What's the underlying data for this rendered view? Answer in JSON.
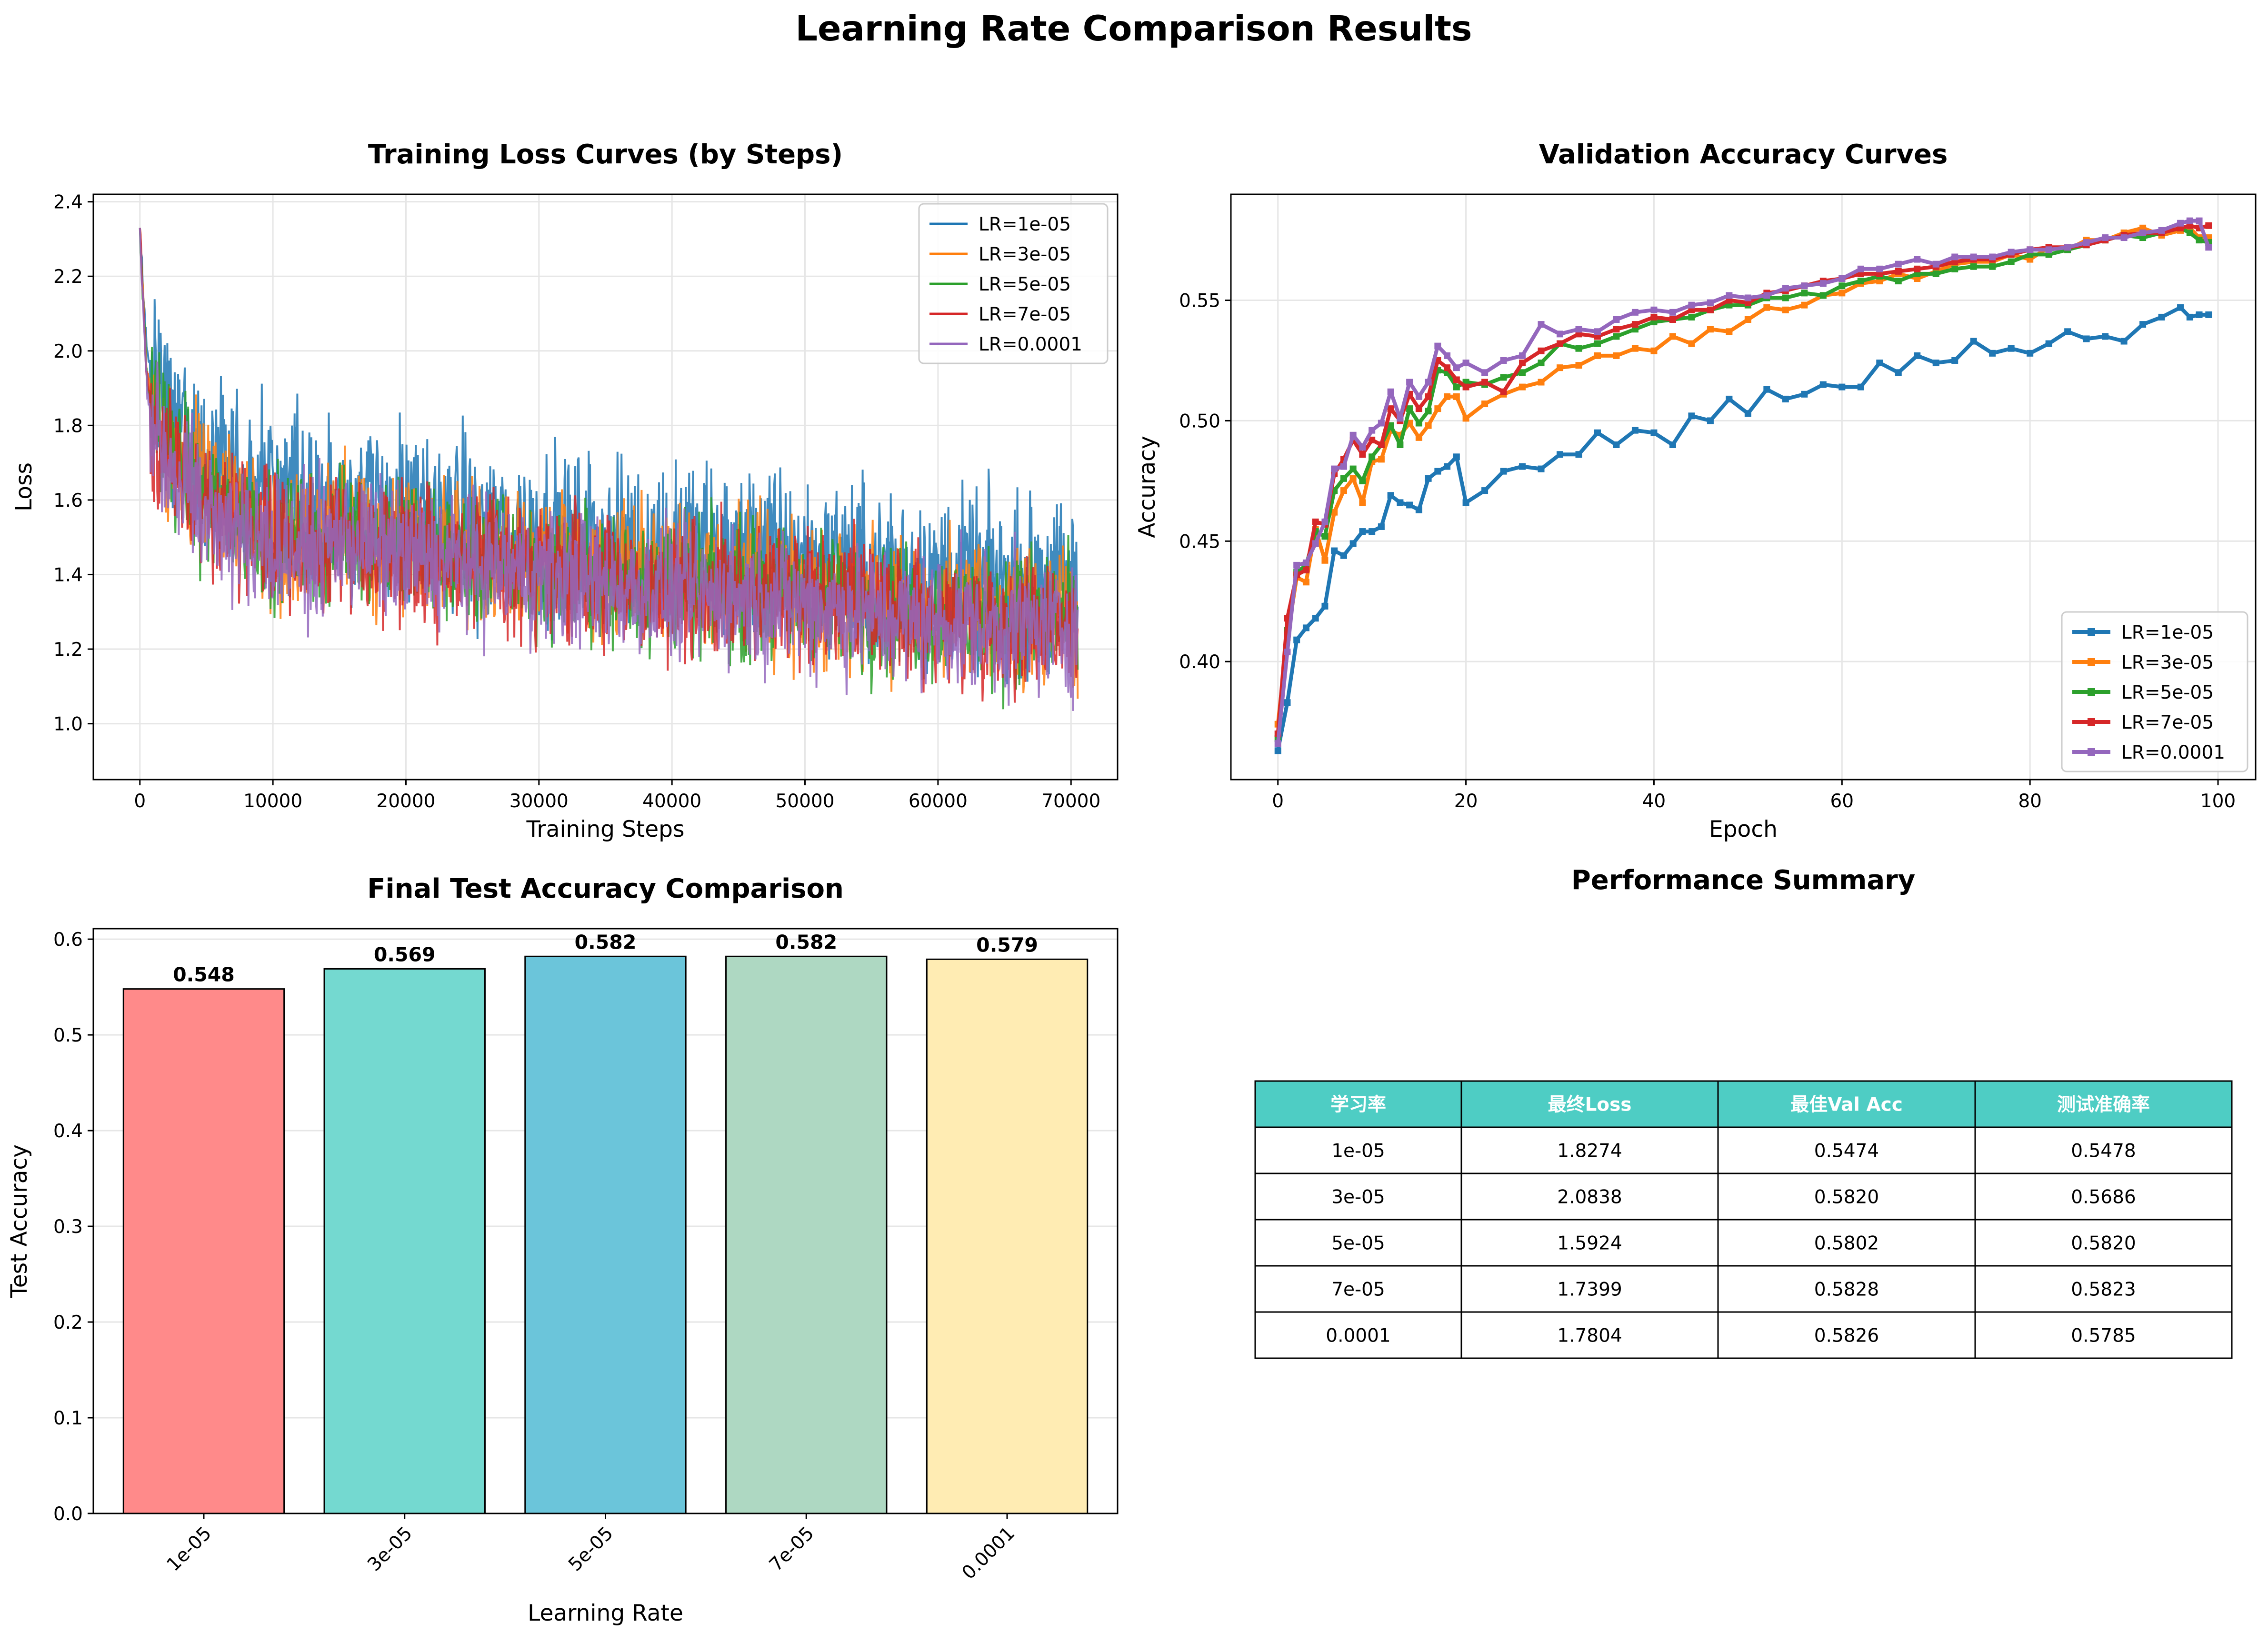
{
  "figure": {
    "title": "Learning Rate Comparison Results"
  },
  "chart_data": [
    {
      "type": "line",
      "title": "Training Loss Curves (by Steps)",
      "xlabel": "Training Steps",
      "ylabel": "Loss",
      "xlim": [
        -3500,
        73500
      ],
      "ylim": [
        0.85,
        2.42
      ],
      "xticks": [
        0,
        10000,
        20000,
        30000,
        40000,
        50000,
        60000,
        70000
      ],
      "yticks": [
        1.0,
        1.2,
        1.4,
        1.6,
        1.8,
        2.0,
        2.2,
        2.4
      ],
      "yticks_labels": [
        "1.0",
        "1.2",
        "1.4",
        "1.6",
        "1.8",
        "2.0",
        "2.2",
        "2.4"
      ],
      "grid": true,
      "legend": "top-right",
      "series": [
        {
          "name": "LR=1e-05",
          "color": "#1f77b4",
          "x": [
            0,
            500,
            1000,
            2000,
            3000,
            5000,
            7500,
            10000,
            12500,
            15000,
            17500,
            20000,
            25000,
            30000,
            35000,
            40000,
            45000,
            50000,
            55000,
            60000,
            65000,
            70500
          ],
          "y": [
            2.33,
            2.0,
            1.92,
            1.86,
            1.8,
            1.7,
            1.66,
            1.63,
            1.6,
            1.6,
            1.58,
            1.56,
            1.53,
            1.5,
            1.49,
            1.47,
            1.46,
            1.44,
            1.41,
            1.39,
            1.37,
            1.36
          ]
        },
        {
          "name": "LR=3e-05",
          "color": "#ff7f0e",
          "x": [
            0,
            500,
            1000,
            2000,
            3000,
            5000,
            7500,
            10000,
            12500,
            15000,
            17500,
            20000,
            25000,
            30000,
            35000,
            40000,
            45000,
            50000,
            55000,
            60000,
            65000,
            70500
          ],
          "y": [
            2.33,
            1.95,
            1.85,
            1.78,
            1.72,
            1.63,
            1.57,
            1.52,
            1.5,
            1.52,
            1.5,
            1.48,
            1.46,
            1.42,
            1.41,
            1.39,
            1.38,
            1.36,
            1.33,
            1.31,
            1.3,
            1.29
          ]
        },
        {
          "name": "LR=5e-05",
          "color": "#2ca02c",
          "x": [
            0,
            500,
            1000,
            2000,
            3000,
            5000,
            7500,
            10000,
            12500,
            15000,
            17500,
            20000,
            25000,
            30000,
            35000,
            40000,
            45000,
            50000,
            55000,
            60000,
            65000,
            70500
          ],
          "y": [
            2.33,
            1.93,
            1.82,
            1.75,
            1.68,
            1.6,
            1.55,
            1.5,
            1.48,
            1.51,
            1.49,
            1.47,
            1.44,
            1.41,
            1.39,
            1.37,
            1.36,
            1.34,
            1.31,
            1.29,
            1.28,
            1.27
          ]
        },
        {
          "name": "LR=7e-05",
          "color": "#d62728",
          "x": [
            0,
            500,
            1000,
            2000,
            3000,
            5000,
            7500,
            10000,
            12500,
            15000,
            17500,
            20000,
            25000,
            30000,
            35000,
            40000,
            45000,
            50000,
            55000,
            60000,
            65000,
            70500
          ],
          "y": [
            2.33,
            1.92,
            1.8,
            1.73,
            1.67,
            1.59,
            1.54,
            1.49,
            1.47,
            1.51,
            1.49,
            1.46,
            1.44,
            1.41,
            1.38,
            1.36,
            1.35,
            1.33,
            1.3,
            1.28,
            1.27,
            1.27
          ]
        },
        {
          "name": "LR=0.0001",
          "color": "#9467bd",
          "x": [
            0,
            500,
            1000,
            2000,
            3000,
            5000,
            7500,
            10000,
            12500,
            15000,
            17500,
            20000,
            25000,
            30000,
            35000,
            40000,
            45000,
            50000,
            55000,
            60000,
            65000,
            70500
          ],
          "y": [
            2.33,
            1.9,
            1.78,
            1.71,
            1.65,
            1.57,
            1.52,
            1.48,
            1.46,
            1.5,
            1.48,
            1.45,
            1.43,
            1.4,
            1.37,
            1.35,
            1.34,
            1.32,
            1.29,
            1.27,
            1.26,
            1.26
          ]
        }
      ]
    },
    {
      "type": "line",
      "title": "Validation Accuracy Curves",
      "xlabel": "Epoch",
      "ylabel": "Accuracy",
      "xlim": [
        -5,
        104
      ],
      "ylim": [
        0.351,
        0.594
      ],
      "xticks": [
        0,
        20,
        40,
        60,
        80,
        100
      ],
      "yticks": [
        0.4,
        0.45,
        0.5,
        0.55
      ],
      "yticks_labels": [
        "0.40",
        "0.45",
        "0.50",
        "0.55"
      ],
      "grid": true,
      "legend": "bottom-right",
      "series": [
        {
          "name": "LR=1e-05",
          "color": "#1f77b4",
          "x": [
            0,
            1,
            2,
            3,
            4,
            5,
            6,
            7,
            8,
            9,
            10,
            11,
            12,
            13,
            14,
            15,
            16,
            17,
            18,
            19,
            20,
            22,
            24,
            26,
            28,
            30,
            32,
            34,
            36,
            38,
            40,
            42,
            44,
            46,
            48,
            50,
            52,
            54,
            56,
            58,
            60,
            62,
            64,
            66,
            68,
            70,
            72,
            74,
            76,
            78,
            80,
            82,
            84,
            86,
            88,
            90,
            92,
            94,
            96,
            97,
            98,
            99
          ],
          "y": [
            0.363,
            0.383,
            0.409,
            0.414,
            0.418,
            0.423,
            0.446,
            0.444,
            0.449,
            0.454,
            0.454,
            0.456,
            0.469,
            0.466,
            0.465,
            0.463,
            0.476,
            0.479,
            0.481,
            0.485,
            0.466,
            0.471,
            0.479,
            0.481,
            0.48,
            0.486,
            0.486,
            0.495,
            0.49,
            0.496,
            0.495,
            0.49,
            0.502,
            0.5,
            0.509,
            0.503,
            0.513,
            0.509,
            0.511,
            0.515,
            0.514,
            0.514,
            0.524,
            0.52,
            0.527,
            0.524,
            0.525,
            0.533,
            0.528,
            0.53,
            0.528,
            0.532,
            0.537,
            0.534,
            0.535,
            0.533,
            0.54,
            0.543,
            0.547,
            0.543,
            0.544,
            0.544
          ]
        },
        {
          "name": "LR=3e-05",
          "color": "#ff7f0e",
          "x": [
            0,
            1,
            2,
            3,
            4,
            5,
            6,
            7,
            8,
            9,
            10,
            11,
            12,
            13,
            14,
            15,
            16,
            17,
            18,
            19,
            20,
            22,
            24,
            26,
            28,
            30,
            32,
            34,
            36,
            38,
            40,
            42,
            44,
            46,
            48,
            50,
            52,
            54,
            56,
            58,
            60,
            62,
            64,
            66,
            68,
            70,
            72,
            74,
            76,
            78,
            80,
            82,
            84,
            86,
            88,
            90,
            92,
            94,
            96,
            97,
            98,
            99
          ],
          "y": [
            0.374,
            0.41,
            0.435,
            0.433,
            0.455,
            0.442,
            0.462,
            0.471,
            0.476,
            0.466,
            0.483,
            0.484,
            0.496,
            0.494,
            0.499,
            0.493,
            0.498,
            0.505,
            0.51,
            0.51,
            0.501,
            0.507,
            0.511,
            0.514,
            0.516,
            0.522,
            0.523,
            0.527,
            0.527,
            0.53,
            0.529,
            0.535,
            0.532,
            0.538,
            0.537,
            0.542,
            0.547,
            0.546,
            0.548,
            0.552,
            0.553,
            0.557,
            0.558,
            0.561,
            0.559,
            0.562,
            0.565,
            0.566,
            0.566,
            0.569,
            0.567,
            0.572,
            0.571,
            0.575,
            0.575,
            0.578,
            0.58,
            0.577,
            0.579,
            0.58,
            0.576,
            0.576
          ]
        },
        {
          "name": "LR=5e-05",
          "color": "#2ca02c",
          "x": [
            0,
            1,
            2,
            3,
            4,
            5,
            6,
            7,
            8,
            9,
            10,
            11,
            12,
            13,
            14,
            15,
            16,
            17,
            18,
            19,
            20,
            22,
            24,
            26,
            28,
            30,
            32,
            34,
            36,
            38,
            40,
            42,
            44,
            46,
            48,
            50,
            52,
            54,
            56,
            58,
            60,
            62,
            64,
            66,
            68,
            70,
            72,
            74,
            76,
            78,
            80,
            82,
            84,
            86,
            88,
            90,
            92,
            94,
            96,
            97,
            98,
            99
          ],
          "y": [
            0.368,
            0.413,
            0.437,
            0.44,
            0.454,
            0.452,
            0.471,
            0.476,
            0.48,
            0.475,
            0.485,
            0.49,
            0.498,
            0.49,
            0.505,
            0.499,
            0.504,
            0.521,
            0.52,
            0.514,
            0.516,
            0.515,
            0.518,
            0.52,
            0.524,
            0.532,
            0.53,
            0.532,
            0.535,
            0.538,
            0.541,
            0.542,
            0.543,
            0.546,
            0.548,
            0.548,
            0.551,
            0.551,
            0.553,
            0.552,
            0.556,
            0.558,
            0.56,
            0.558,
            0.561,
            0.561,
            0.563,
            0.564,
            0.564,
            0.566,
            0.569,
            0.569,
            0.571,
            0.573,
            0.575,
            0.577,
            0.576,
            0.578,
            0.58,
            0.578,
            0.575,
            0.574
          ]
        },
        {
          "name": "LR=7e-05",
          "color": "#d62728",
          "x": [
            0,
            1,
            2,
            3,
            4,
            5,
            6,
            7,
            8,
            9,
            10,
            11,
            12,
            13,
            14,
            15,
            16,
            17,
            18,
            19,
            20,
            22,
            24,
            26,
            28,
            30,
            32,
            34,
            36,
            38,
            40,
            42,
            44,
            46,
            48,
            50,
            52,
            54,
            56,
            58,
            60,
            62,
            64,
            66,
            68,
            70,
            72,
            74,
            76,
            78,
            80,
            82,
            84,
            86,
            88,
            90,
            92,
            94,
            96,
            97,
            98,
            99
          ],
          "y": [
            0.37,
            0.418,
            0.436,
            0.438,
            0.458,
            0.457,
            0.478,
            0.484,
            0.492,
            0.486,
            0.492,
            0.49,
            0.505,
            0.5,
            0.511,
            0.505,
            0.51,
            0.525,
            0.522,
            0.517,
            0.514,
            0.516,
            0.512,
            0.524,
            0.529,
            0.532,
            0.536,
            0.535,
            0.538,
            0.54,
            0.543,
            0.542,
            0.546,
            0.546,
            0.55,
            0.549,
            0.553,
            0.554,
            0.556,
            0.558,
            0.559,
            0.561,
            0.561,
            0.562,
            0.563,
            0.564,
            0.566,
            0.567,
            0.567,
            0.569,
            0.571,
            0.572,
            0.572,
            0.573,
            0.575,
            0.577,
            0.578,
            0.578,
            0.58,
            0.581,
            0.58,
            0.581
          ]
        },
        {
          "name": "LR=0.0001",
          "color": "#9467bd",
          "x": [
            0,
            1,
            2,
            3,
            4,
            5,
            6,
            7,
            8,
            9,
            10,
            11,
            12,
            13,
            14,
            15,
            16,
            17,
            18,
            19,
            20,
            22,
            24,
            26,
            28,
            30,
            32,
            34,
            36,
            38,
            40,
            42,
            44,
            46,
            48,
            50,
            52,
            54,
            56,
            58,
            60,
            62,
            64,
            66,
            68,
            70,
            72,
            74,
            76,
            78,
            80,
            82,
            84,
            86,
            88,
            90,
            92,
            94,
            96,
            97,
            98,
            99
          ],
          "y": [
            0.366,
            0.404,
            0.44,
            0.441,
            0.449,
            0.458,
            0.48,
            0.481,
            0.494,
            0.489,
            0.496,
            0.499,
            0.512,
            0.501,
            0.516,
            0.51,
            0.516,
            0.531,
            0.527,
            0.522,
            0.524,
            0.52,
            0.525,
            0.527,
            0.54,
            0.536,
            0.538,
            0.537,
            0.542,
            0.545,
            0.546,
            0.545,
            0.548,
            0.549,
            0.552,
            0.551,
            0.552,
            0.555,
            0.556,
            0.557,
            0.559,
            0.563,
            0.563,
            0.565,
            0.567,
            0.565,
            0.568,
            0.568,
            0.568,
            0.57,
            0.571,
            0.571,
            0.572,
            0.574,
            0.576,
            0.576,
            0.578,
            0.579,
            0.582,
            0.583,
            0.583,
            0.572
          ]
        }
      ]
    },
    {
      "type": "bar",
      "title": "Final Test Accuracy Comparison",
      "xlabel": "Learning Rate",
      "ylabel": "Test Accuracy",
      "categories": [
        "1e-05",
        "3e-05",
        "5e-05",
        "7e-05",
        "0.0001"
      ],
      "values": [
        0.548,
        0.569,
        0.582,
        0.582,
        0.579
      ],
      "value_labels": [
        "0.548",
        "0.569",
        "0.582",
        "0.582",
        "0.579"
      ],
      "colors": [
        "#ff8a8a",
        "#74d9d0",
        "#6bc5da",
        "#aed8c2",
        "#ffecb3"
      ],
      "ylim": [
        0,
        0.611
      ],
      "yticks": [
        0.0,
        0.1,
        0.2,
        0.3,
        0.4,
        0.5,
        0.6
      ],
      "yticks_labels": [
        "0.0",
        "0.1",
        "0.2",
        "0.3",
        "0.4",
        "0.5",
        "0.6"
      ],
      "grid": true
    },
    {
      "type": "table",
      "title": "Performance Summary",
      "header_color": "#4ecdc4",
      "columns": [
        "学习率",
        "最终Loss",
        "最佳Val Acc",
        "测试准确率"
      ],
      "rows": [
        [
          "1e-05",
          "1.8274",
          "0.5474",
          "0.5478"
        ],
        [
          "3e-05",
          "2.0838",
          "0.5820",
          "0.5686"
        ],
        [
          "5e-05",
          "1.5924",
          "0.5802",
          "0.5820"
        ],
        [
          "7e-05",
          "1.7399",
          "0.5828",
          "0.5823"
        ],
        [
          "0.0001",
          "1.7804",
          "0.5826",
          "0.5785"
        ]
      ]
    }
  ]
}
